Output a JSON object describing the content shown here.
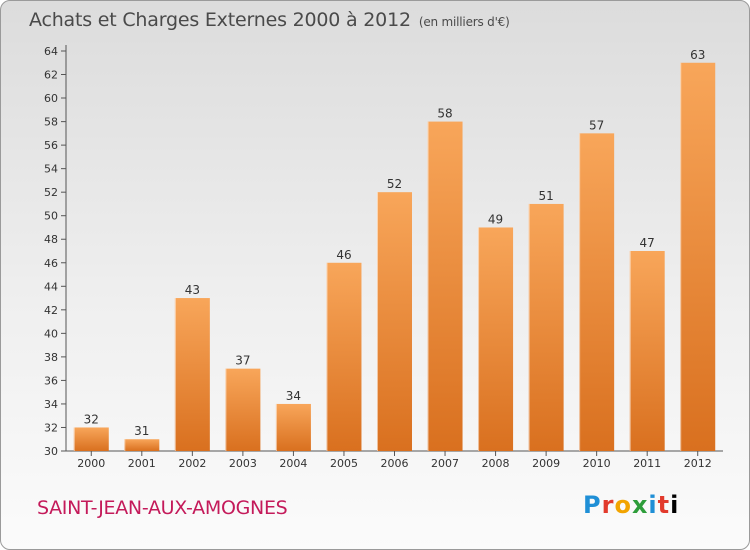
{
  "header": {
    "title": "Achats et Charges Externes 2000 à 2012",
    "unit": "(en milliers d'€)"
  },
  "footer": {
    "commune": "SAINT-JEAN-AUX-AMOGNES",
    "logo": "Proxiti"
  },
  "colors": {
    "bar_top": "#f8a65a",
    "bar_bottom": "#d9701f",
    "commune": "#c41a5a",
    "axis": "#555555"
  },
  "chart_data": {
    "type": "bar",
    "title": "Achats et Charges Externes 2000 à 2012",
    "subtitle": "(en milliers d'€)",
    "xlabel": "",
    "ylabel": "",
    "categories": [
      "2000",
      "2001",
      "2002",
      "2003",
      "2004",
      "2005",
      "2006",
      "2007",
      "2008",
      "2009",
      "2010",
      "2011",
      "2012"
    ],
    "values": [
      32,
      31,
      43,
      37,
      34,
      46,
      52,
      58,
      49,
      51,
      57,
      47,
      63
    ],
    "ylim": [
      30,
      64
    ],
    "yticks": [
      30,
      32,
      34,
      36,
      38,
      40,
      42,
      44,
      46,
      48,
      50,
      52,
      54,
      56,
      58,
      60,
      62,
      64
    ],
    "grid": false,
    "legend": "none",
    "data_labels": true
  }
}
